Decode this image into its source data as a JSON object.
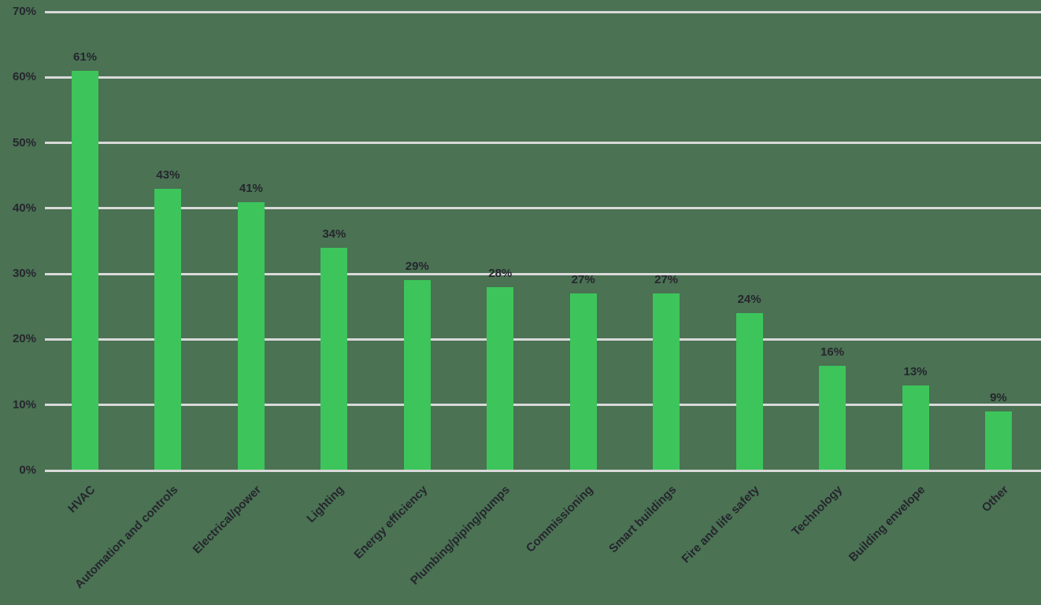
{
  "chart_data": {
    "type": "bar",
    "title": "",
    "xlabel": "",
    "ylabel": "",
    "categories": [
      "HVAC",
      "Automation and controls",
      "Electrical/power",
      "Lighting",
      "Energy efficiency",
      "Plumbing/piping/pumps",
      "Commissioning",
      "Smart buildings",
      "Fire and life safety",
      "Technology",
      "Building envelope",
      "Other"
    ],
    "values": [
      61,
      43,
      41,
      34,
      29,
      28,
      27,
      27,
      24,
      16,
      13,
      9
    ],
    "value_labels": [
      "61%",
      "43%",
      "41%",
      "34%",
      "29%",
      "28%",
      "27%",
      "27%",
      "24%",
      "16%",
      "13%",
      "9%"
    ],
    "ytick_values": [
      0,
      10,
      20,
      30,
      40,
      50,
      60,
      70
    ],
    "ytick_labels": [
      "0%",
      "10%",
      "20%",
      "30%",
      "40%",
      "50%",
      "60%",
      "70%"
    ],
    "ylim": [
      0,
      70
    ],
    "grid": true,
    "legend": "none",
    "colors": {
      "background": "#4A7253",
      "bar": "#3DC55B",
      "text": "#26262E",
      "gridline": "#D9D9D9"
    }
  }
}
